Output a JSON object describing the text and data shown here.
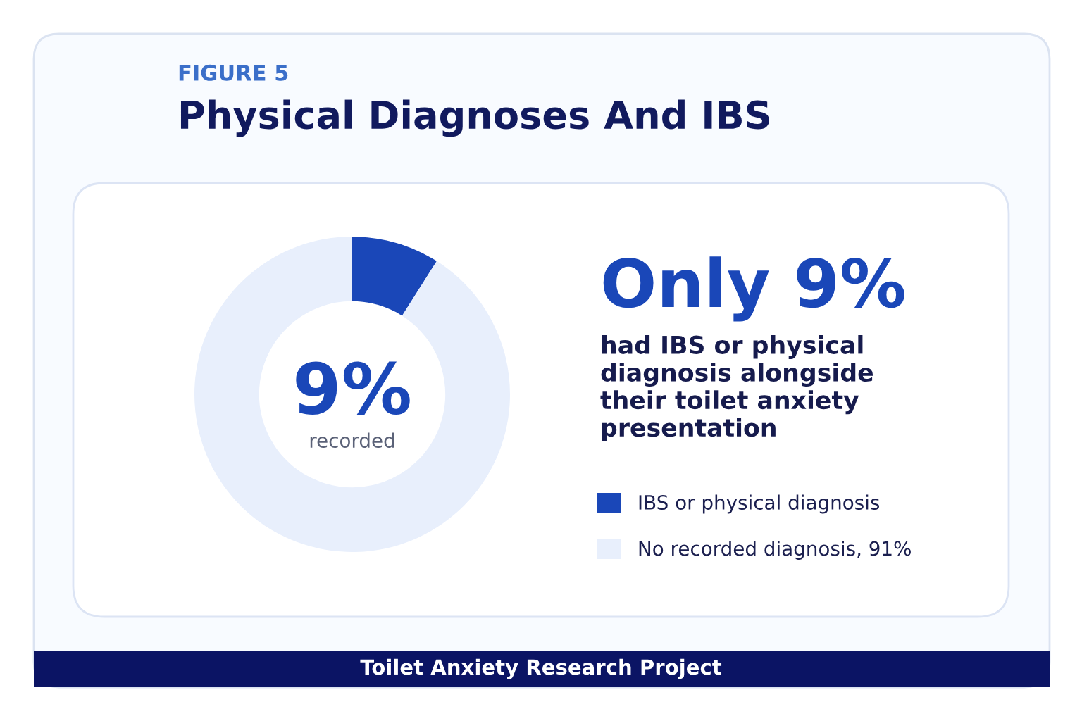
{
  "chart_data": {
    "type": "donut",
    "subtitle": "FIGURE 5",
    "title": "Physical Diagnoses And IBS",
    "categories": [
      "IBS or physical diagnosis",
      "No recorded diagnosis, 91%"
    ],
    "values": [
      9,
      91
    ],
    "colors": [
      "#1a47b8",
      "#e8effc"
    ],
    "legend": "right",
    "annotations": [
      "9%",
      "recorded",
      "Only 9%",
      "had IBS or physical diagnosis alongside their toilet anxiety presentation",
      "Toilet Anxiety Research Project"
    ]
  }
}
